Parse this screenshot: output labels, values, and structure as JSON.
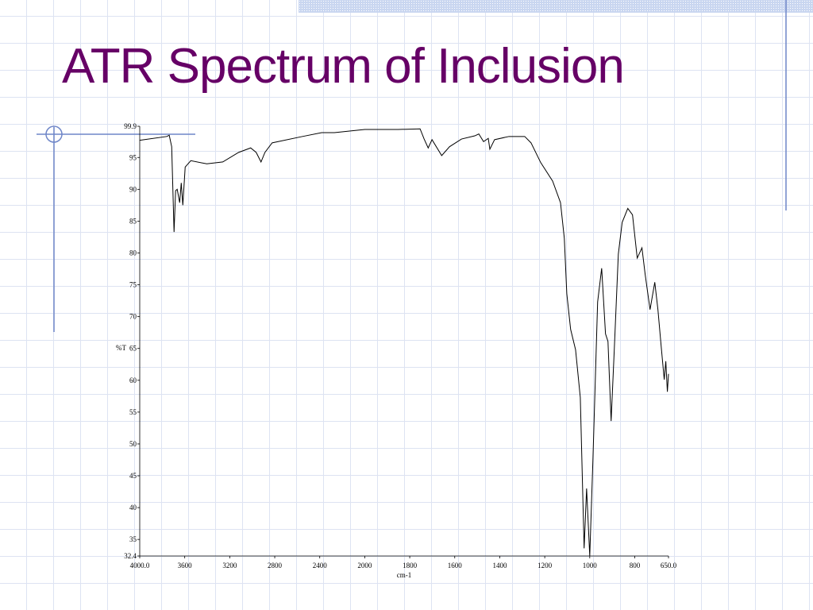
{
  "chart_data": {
    "type": "line",
    "title": "ATR Spectrum of Inclusion",
    "x_label": "cm-1",
    "y_label": "%T",
    "color": "#000000",
    "xlim": [
      4000,
      650
    ],
    "x_break": 2000,
    "x_break_expansion": 2,
    "xticks": [
      {
        "value": 4000,
        "label": "4000.0"
      },
      3600,
      3200,
      2800,
      2400,
      2000,
      1800,
      1600,
      1400,
      1200,
      1000,
      800,
      {
        "value": 650,
        "label": "650.0"
      }
    ],
    "ylim": [
      32.4,
      99.9
    ],
    "yticks": [
      32.4,
      35,
      40,
      45,
      50,
      55,
      60,
      65,
      70,
      75,
      80,
      85,
      90,
      95,
      99.9
    ],
    "x": [
      4000,
      3759,
      3738,
      3716,
      3695,
      3681,
      3667,
      3645,
      3631,
      3617,
      3596,
      3546,
      3404,
      3262,
      3121,
      3014,
      2965,
      2922,
      2887,
      2823,
      2553,
      2383,
      2270,
      2000,
      1852,
      1754,
      1736,
      1718,
      1701,
      1658,
      1623,
      1570,
      1511,
      1493,
      1472,
      1451,
      1444,
      1423,
      1359,
      1289,
      1261,
      1218,
      1165,
      1130,
      1113,
      1102,
      1085,
      1063,
      1042,
      1025,
      1014,
      1000,
      986,
      965,
      947,
      930,
      919,
      905,
      891,
      873,
      856,
      831,
      810,
      789,
      768,
      754,
      732,
      711,
      697,
      683,
      669,
      662,
      655,
      650
    ],
    "values": [
      97.7,
      98.3,
      98.5,
      96.7,
      83.3,
      89.8,
      90.0,
      87.9,
      91.0,
      87.5,
      93.5,
      94.5,
      94.0,
      94.3,
      95.8,
      96.5,
      95.8,
      94.3,
      95.8,
      97.3,
      98.3,
      98.9,
      98.9,
      99.4,
      99.4,
      99.5,
      97.9,
      96.5,
      97.8,
      95.3,
      96.7,
      97.9,
      98.4,
      98.7,
      97.5,
      98.0,
      96.3,
      97.8,
      98.3,
      98.3,
      97.3,
      94.2,
      91.3,
      87.9,
      82.3,
      73.6,
      68.0,
      64.8,
      57.3,
      33.6,
      43.0,
      32.4,
      47.4,
      72.3,
      77.6,
      67.3,
      66.1,
      53.6,
      64.8,
      79.8,
      84.8,
      87.0,
      86.0,
      79.2,
      80.8,
      76.7,
      71.1,
      75.4,
      71.1,
      65.5,
      60.1,
      63.0,
      58.2,
      61.0
    ]
  }
}
